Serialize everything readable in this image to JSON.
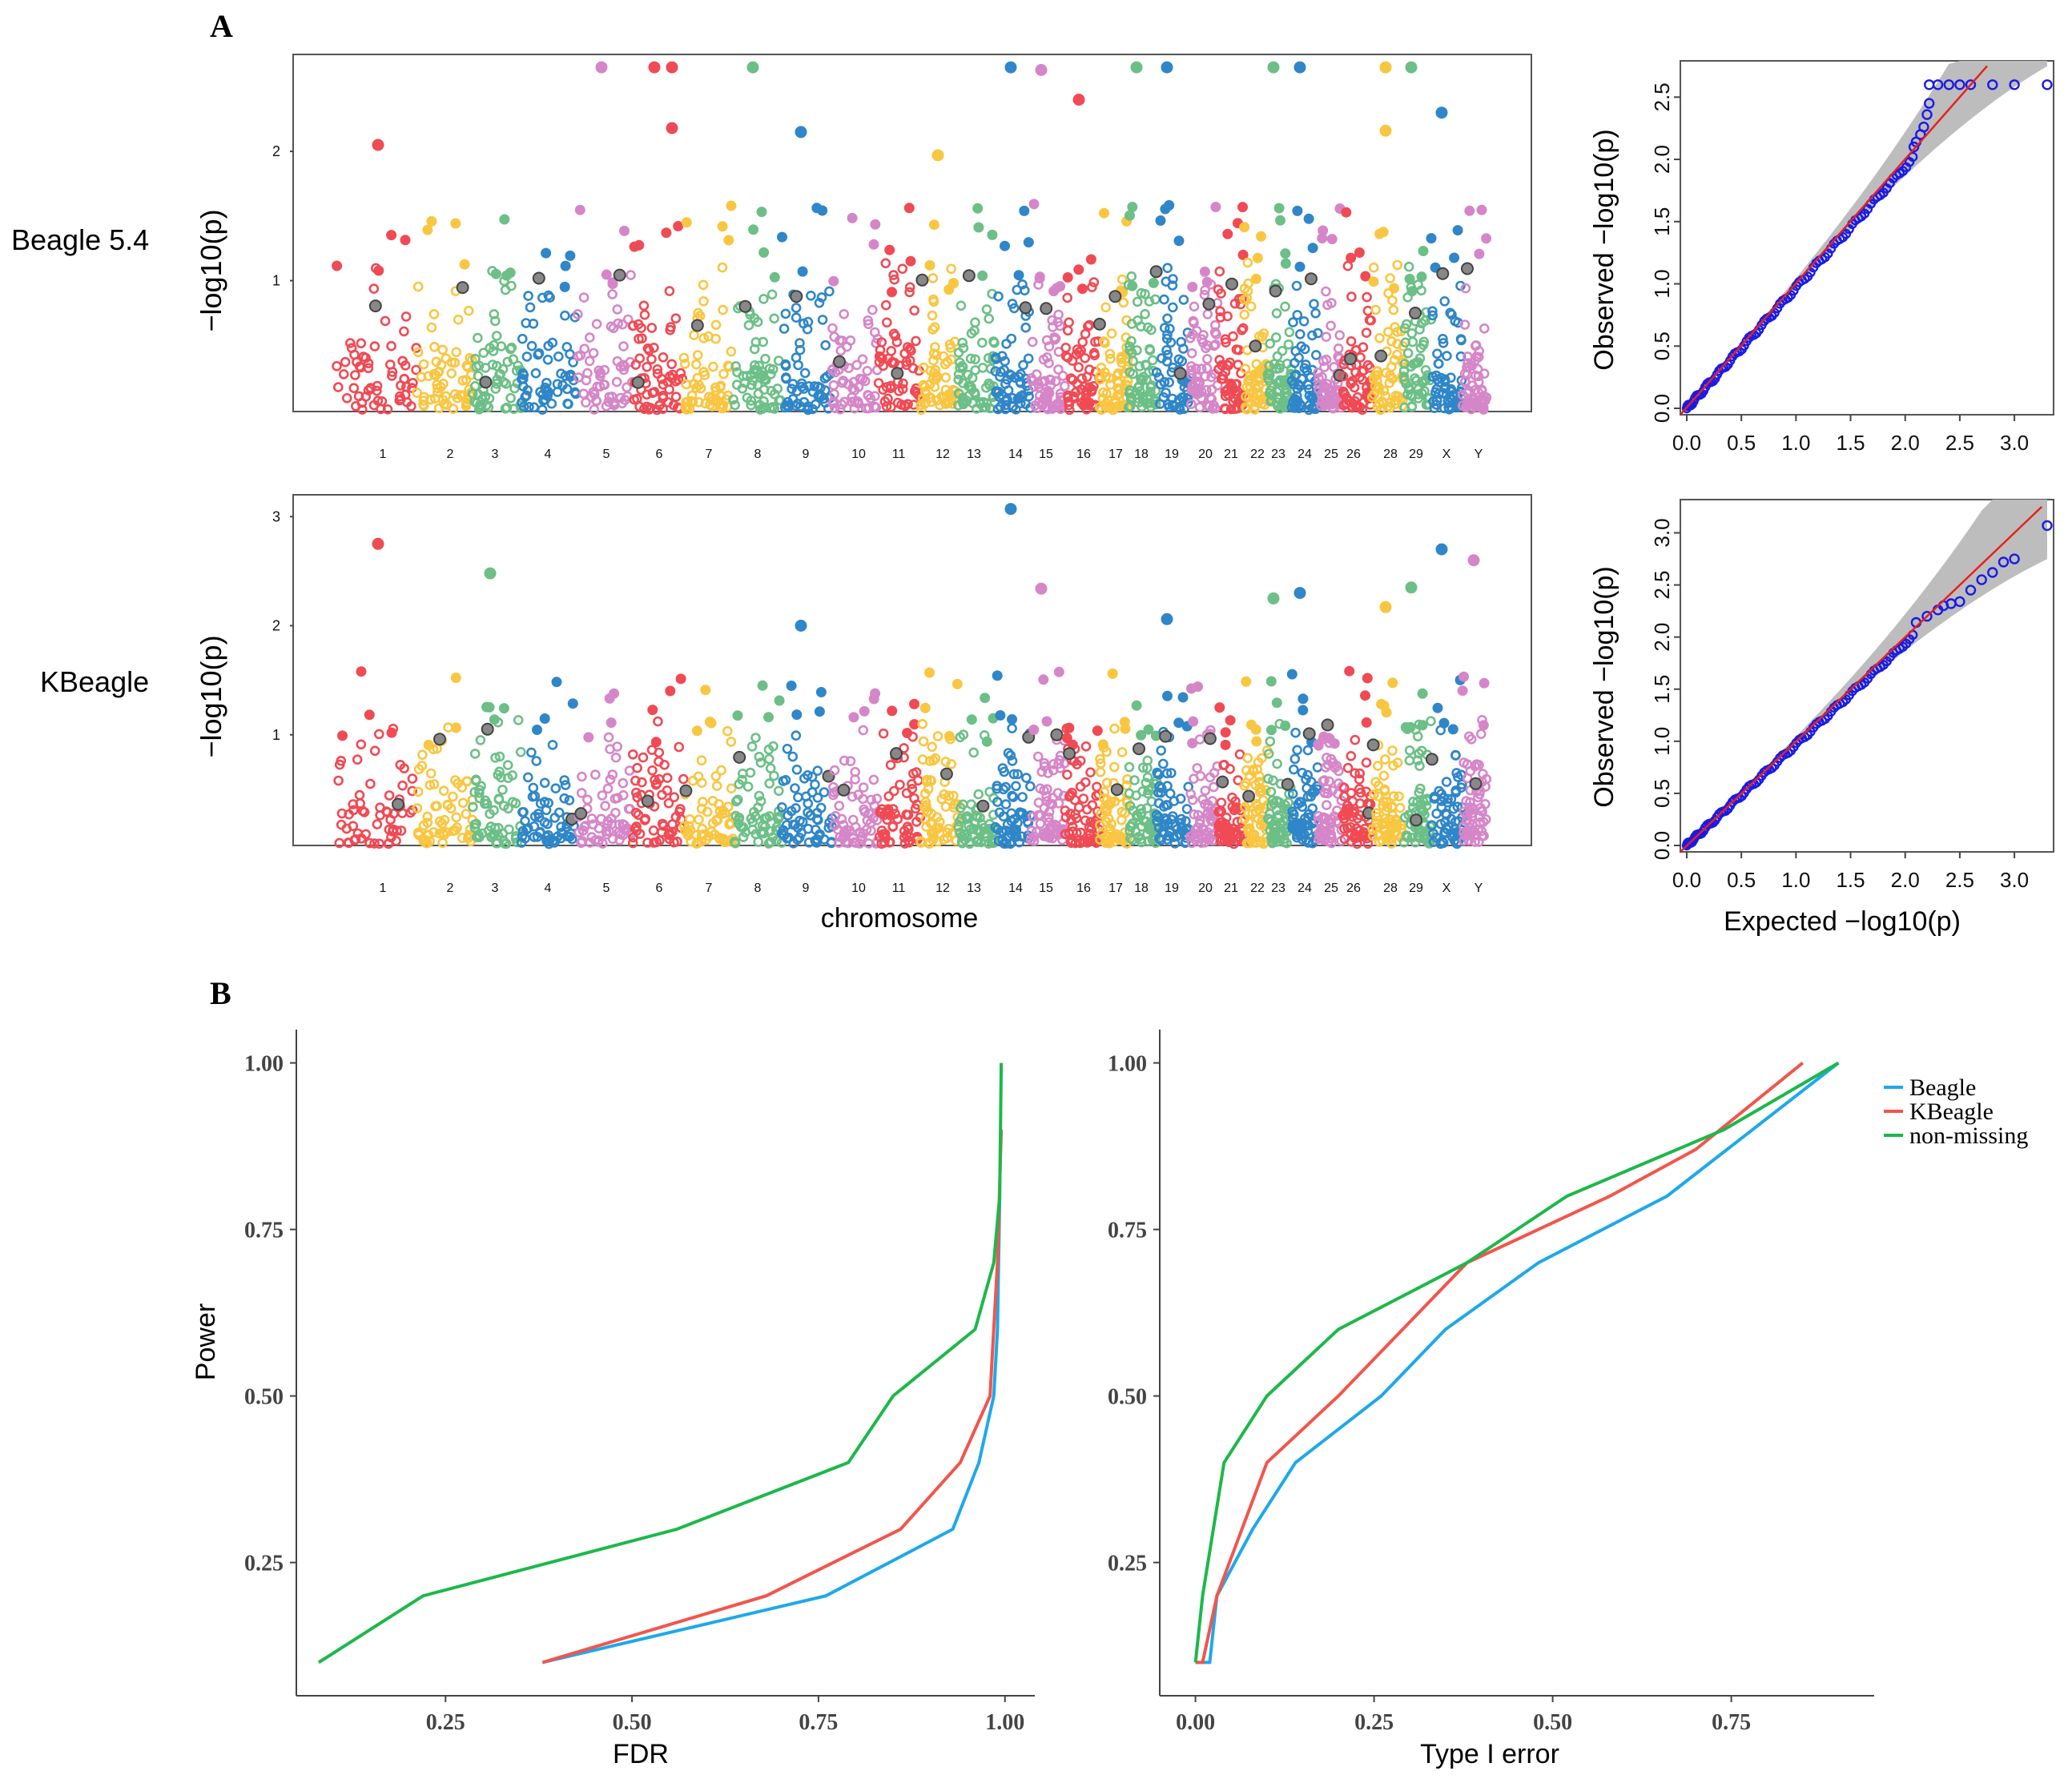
{
  "panel_labels": {
    "a": "A",
    "b": "B"
  },
  "colors": {
    "red": "#f04a54",
    "yellow": "#f9c642",
    "green": "#6cbf86",
    "blue": "#2f86c8",
    "pink": "#d586c8",
    "qq_points": "#1a1ae6",
    "qq_line": "#e8201c",
    "qq_band": "#bdbdbd",
    "beagle": "#1ea8ea",
    "kbeagle": "#f2554c",
    "nonmissing": "#1cb84a"
  },
  "chart_data": [
    {
      "id": "manhattan_beagle",
      "type": "scatter",
      "row_label": "Beagle 5.4",
      "ylabel": "−log10(p)",
      "xlabel": "",
      "ylim": [
        0,
        2.75
      ],
      "yticks": [
        1,
        2
      ],
      "chromosomes": [
        "1",
        "2",
        "3",
        "4",
        "5",
        "6",
        "7",
        "8",
        "9",
        "10",
        "11",
        "12",
        "13",
        "14",
        "15",
        "16",
        "17",
        "18",
        "19",
        "20",
        "21",
        "22",
        "23",
        "24",
        "25",
        "26",
        "28",
        "29",
        "X",
        "Y"
      ],
      "top_hits": [
        {
          "chr": "5",
          "value": 2.65
        },
        {
          "chr": "6",
          "value": 2.65
        },
        {
          "chr": "6b",
          "value": 2.65
        },
        {
          "chr": "8",
          "value": 2.65
        },
        {
          "chr": "14",
          "value": 2.65
        },
        {
          "chr": "15",
          "value": 2.63
        },
        {
          "chr": "18",
          "value": 2.65
        },
        {
          "chr": "19",
          "value": 2.65
        },
        {
          "chr": "23",
          "value": 2.65
        },
        {
          "chr": "24",
          "value": 2.65
        },
        {
          "chr": "28",
          "value": 2.65
        },
        {
          "chr": "29",
          "value": 2.65
        },
        {
          "chr": "X",
          "value": 2.3
        },
        {
          "chr": "16",
          "value": 2.4
        },
        {
          "chr": "6b",
          "value": 2.18
        },
        {
          "chr": "1",
          "value": 2.05
        },
        {
          "chr": "9",
          "value": 2.15
        },
        {
          "chr": "28",
          "value": 2.16
        },
        {
          "chr": "12",
          "value": 1.97
        }
      ]
    },
    {
      "id": "manhattan_kbeagle",
      "type": "scatter",
      "row_label": "KBeagle",
      "ylabel": "−log10(p)",
      "xlabel": "chromosome",
      "ylim": [
        0,
        3.2
      ],
      "yticks": [
        1,
        2,
        3
      ],
      "chromosomes": [
        "1",
        "2",
        "3",
        "4",
        "5",
        "6",
        "7",
        "8",
        "9",
        "10",
        "11",
        "12",
        "13",
        "14",
        "15",
        "16",
        "17",
        "18",
        "19",
        "20",
        "21",
        "22",
        "23",
        "24",
        "25",
        "26",
        "28",
        "29",
        "X",
        "Y"
      ],
      "top_hits": [
        {
          "chr": "14",
          "value": 3.07
        },
        {
          "chr": "1",
          "value": 2.75
        },
        {
          "chr": "X",
          "value": 2.7
        },
        {
          "chr": "Y",
          "value": 2.6
        },
        {
          "chr": "3",
          "value": 2.48
        },
        {
          "chr": "15",
          "value": 2.34
        },
        {
          "chr": "29",
          "value": 2.35
        },
        {
          "chr": "24",
          "value": 2.3
        },
        {
          "chr": "23",
          "value": 2.25
        },
        {
          "chr": "28",
          "value": 2.17
        },
        {
          "chr": "19",
          "value": 2.06
        },
        {
          "chr": "9",
          "value": 2.0
        }
      ]
    },
    {
      "id": "qq_beagle",
      "type": "scatter",
      "xlabel": "",
      "ylabel": "Observed  −log10(p)",
      "xlim": [
        0,
        3.3
      ],
      "ylim": [
        0,
        2.65
      ],
      "xticks": [
        "0.0",
        "0.5",
        "1.0",
        "1.5",
        "2.0",
        "2.5",
        "3.0"
      ],
      "yticks": [
        "0.0",
        "0.5",
        "1.0",
        "1.5",
        "2.0",
        "2.5"
      ],
      "max_expected": 3.3,
      "upper_tail": [
        [
          2.22,
          2.6
        ],
        [
          2.3,
          2.6
        ],
        [
          2.4,
          2.6
        ],
        [
          2.5,
          2.6
        ],
        [
          2.6,
          2.6
        ],
        [
          2.8,
          2.6
        ],
        [
          3.0,
          2.6
        ],
        [
          3.3,
          2.6
        ],
        [
          2.22,
          2.45
        ],
        [
          2.2,
          2.36
        ],
        [
          2.17,
          2.26
        ],
        [
          2.14,
          2.2
        ],
        [
          2.1,
          2.14
        ],
        [
          2.08,
          2.1
        ]
      ]
    },
    {
      "id": "qq_kbeagle",
      "type": "scatter",
      "xlabel": "Expected  −log10(p)",
      "ylabel": "Observed  −log10(p)",
      "xlim": [
        0,
        3.3
      ],
      "ylim": [
        0,
        3.15
      ],
      "xticks": [
        "0.0",
        "0.5",
        "1.0",
        "1.5",
        "2.0",
        "2.5",
        "3.0"
      ],
      "yticks": [
        "0.0",
        "0.5",
        "1.0",
        "1.5",
        "2.0",
        "2.5",
        "3.0"
      ],
      "max_expected": 3.3,
      "upper_tail": [
        [
          3.3,
          3.07
        ],
        [
          3.0,
          2.75
        ],
        [
          2.9,
          2.72
        ],
        [
          2.8,
          2.62
        ],
        [
          2.7,
          2.55
        ],
        [
          2.6,
          2.45
        ],
        [
          2.5,
          2.34
        ],
        [
          2.42,
          2.32
        ],
        [
          2.35,
          2.3
        ],
        [
          2.3,
          2.26
        ],
        [
          2.2,
          2.2
        ],
        [
          2.1,
          2.14
        ]
      ]
    },
    {
      "id": "power_fdr",
      "type": "line",
      "xlabel": "FDR",
      "ylabel": "Power",
      "xlim": [
        0.05,
        1.04
      ],
      "ylim": [
        0.05,
        1.05
      ],
      "xticks": [
        "0.25",
        "0.50",
        "0.75",
        "1.00"
      ],
      "yticks": [
        "0.25",
        "0.50",
        "0.75",
        "1.00"
      ],
      "series": [
        {
          "name": "Beagle",
          "values": [
            [
              0.38,
              0.1
            ],
            [
              0.76,
              0.2
            ],
            [
              0.93,
              0.3
            ],
            [
              0.965,
              0.4
            ],
            [
              0.985,
              0.5
            ],
            [
              0.99,
              0.6
            ],
            [
              0.993,
              0.8
            ]
          ]
        },
        {
          "name": "KBeagle",
          "values": [
            [
              0.38,
              0.1
            ],
            [
              0.68,
              0.2
            ],
            [
              0.86,
              0.3
            ],
            [
              0.94,
              0.4
            ],
            [
              0.98,
              0.5
            ],
            [
              0.99,
              0.7
            ],
            [
              0.995,
              0.9
            ]
          ]
        },
        {
          "name": "non-missing",
          "values": [
            [
              0.08,
              0.1
            ],
            [
              0.22,
              0.2
            ],
            [
              0.56,
              0.3
            ],
            [
              0.79,
              0.4
            ],
            [
              0.85,
              0.5
            ],
            [
              0.96,
              0.6
            ],
            [
              0.985,
              0.7
            ],
            [
              0.993,
              0.8
            ],
            [
              0.995,
              1.0
            ]
          ]
        }
      ]
    },
    {
      "id": "power_type1",
      "type": "line",
      "xlabel": "Type I error",
      "ylabel": "",
      "xlim": [
        -0.05,
        0.95
      ],
      "ylim": [
        0.05,
        1.05
      ],
      "xticks": [
        "0.00",
        "0.25",
        "0.50",
        "0.75"
      ],
      "yticks": [
        "0.25",
        "0.50",
        "0.75",
        "1.00"
      ],
      "legend": [
        "Beagle",
        "KBeagle",
        "non-missing"
      ],
      "series": [
        {
          "name": "Beagle",
          "values": [
            [
              0.0,
              0.1
            ],
            [
              0.02,
              0.1
            ],
            [
              0.03,
              0.2
            ],
            [
              0.08,
              0.3
            ],
            [
              0.14,
              0.4
            ],
            [
              0.26,
              0.5
            ],
            [
              0.35,
              0.6
            ],
            [
              0.48,
              0.7
            ],
            [
              0.66,
              0.8
            ],
            [
              0.9,
              1.0
            ]
          ]
        },
        {
          "name": "KBeagle",
          "values": [
            [
              0.0,
              0.1
            ],
            [
              0.01,
              0.1
            ],
            [
              0.03,
              0.2
            ],
            [
              0.1,
              0.4
            ],
            [
              0.2,
              0.5
            ],
            [
              0.29,
              0.6
            ],
            [
              0.38,
              0.7
            ],
            [
              0.58,
              0.8
            ],
            [
              0.7,
              0.87
            ],
            [
              0.85,
              1.0
            ]
          ]
        },
        {
          "name": "non-missing",
          "values": [
            [
              0.0,
              0.1
            ],
            [
              0.01,
              0.2
            ],
            [
              0.04,
              0.4
            ],
            [
              0.1,
              0.5
            ],
            [
              0.2,
              0.6
            ],
            [
              0.38,
              0.7
            ],
            [
              0.52,
              0.8
            ],
            [
              0.74,
              0.9
            ],
            [
              0.9,
              1.0
            ]
          ]
        }
      ]
    }
  ]
}
